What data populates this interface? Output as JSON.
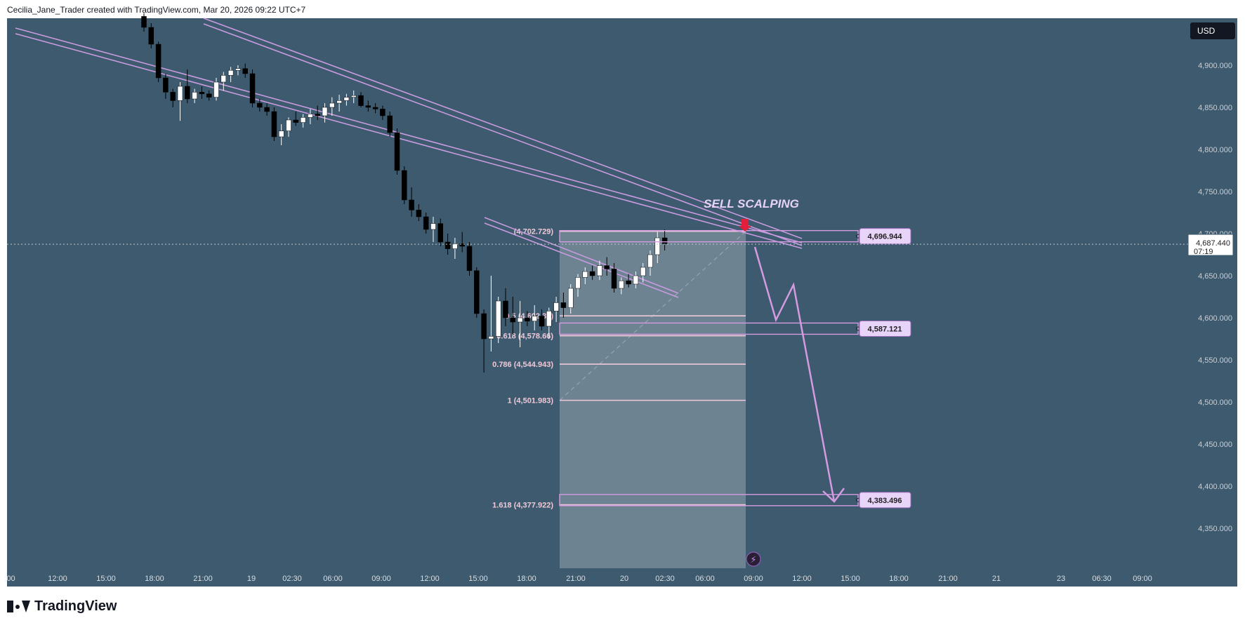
{
  "header": {
    "attribution": "Cecilia_Jane_Trader created with TradingView.com, Mar 20, 2026 09:22 UTC+7"
  },
  "footer": {
    "brand": "TradingView"
  },
  "colors": {
    "background": "#3e5a6e",
    "bull": "#ffffff",
    "bear": "#000000",
    "channel": "#c89be0",
    "fib": "#f0c8d8",
    "arrow": "#d49be0",
    "label_bg": "#e8d4f8"
  },
  "chart_data": {
    "type": "candlestick",
    "title": "",
    "currency": "USD",
    "ylim": [
      4300,
      4960
    ],
    "y_ticks": [
      "4,900.000",
      "4,850.000",
      "4,800.000",
      "4,750.000",
      "4,700.000",
      "4,650.000",
      "4,600.000",
      "4,550.000",
      "4,500.000",
      "4,450.000",
      "4,400.000",
      "4,350.000"
    ],
    "y_tick_values": [
      4900,
      4850,
      4800,
      4750,
      4700,
      4650,
      4600,
      4550,
      4500,
      4450,
      4400,
      4350
    ],
    "x_ticks": [
      ":00",
      "12:00",
      "15:00",
      "18:00",
      "21:00",
      "19",
      "02:30",
      "06:00",
      "09:00",
      "12:00",
      "15:00",
      "18:00",
      "21:00",
      "20",
      "02:30",
      "06:00",
      "09:00",
      "12:00",
      "15:00",
      "18:00",
      "21:00",
      "21",
      "23",
      "06:30",
      "09:00"
    ],
    "current_price": {
      "price": "4,687.440",
      "countdown": "07:19",
      "value": 4687.44
    },
    "annotation": "SELL SCALPING",
    "fib_levels": [
      {
        "label": "(4,702.729)",
        "value": 4702.729
      },
      {
        "label": "0.5 (4,602.33)",
        "value": 4602.33
      },
      {
        "label": "0.618 (4,578.66)",
        "value": 4578.66
      },
      {
        "label": "0.786 (4,544.943)",
        "value": 4544.943
      },
      {
        "label": "1 (4,501.983)",
        "value": 4501.983
      },
      {
        "label": "1.618 (4,377.922)",
        "value": 4377.922
      }
    ],
    "zones": [
      {
        "label": "4,696.944",
        "value": 4696.944
      },
      {
        "label": "4,587.121",
        "value": 4587.121
      },
      {
        "label": "4,383.496",
        "value": 4383.496
      }
    ],
    "candles": [
      [
        4958,
        4962,
        4940,
        4945
      ],
      [
        4945,
        4950,
        4920,
        4925
      ],
      [
        4925,
        4928,
        4880,
        4885
      ],
      [
        4885,
        4890,
        4860,
        4868
      ],
      [
        4868,
        4872,
        4850,
        4858
      ],
      [
        4858,
        4880,
        4834,
        4875
      ],
      [
        4875,
        4895,
        4855,
        4860
      ],
      [
        4860,
        4872,
        4855,
        4868
      ],
      [
        4868,
        4875,
        4860,
        4866
      ],
      [
        4866,
        4870,
        4858,
        4862
      ],
      [
        4862,
        4885,
        4858,
        4880
      ],
      [
        4880,
        4892,
        4870,
        4888
      ],
      [
        4888,
        4898,
        4880,
        4894
      ],
      [
        4894,
        4900,
        4888,
        4896
      ],
      [
        4896,
        4902,
        4885,
        4890
      ],
      [
        4890,
        4895,
        4850,
        4855
      ],
      [
        4855,
        4860,
        4845,
        4850
      ],
      [
        4850,
        4855,
        4840,
        4845
      ],
      [
        4845,
        4850,
        4810,
        4815
      ],
      [
        4815,
        4830,
        4805,
        4822
      ],
      [
        4822,
        4838,
        4815,
        4835
      ],
      [
        4835,
        4845,
        4828,
        4832
      ],
      [
        4832,
        4842,
        4826,
        4838
      ],
      [
        4838,
        4848,
        4830,
        4842
      ],
      [
        4842,
        4852,
        4835,
        4840
      ],
      [
        4840,
        4855,
        4832,
        4850
      ],
      [
        4850,
        4862,
        4840,
        4855
      ],
      [
        4855,
        4865,
        4845,
        4858
      ],
      [
        4858,
        4866,
        4852,
        4862
      ],
      [
        4862,
        4870,
        4855,
        4864
      ],
      [
        4864,
        4868,
        4850,
        4852
      ],
      [
        4852,
        4858,
        4845,
        4850
      ],
      [
        4850,
        4855,
        4843,
        4848
      ],
      [
        4848,
        4852,
        4835,
        4840
      ],
      [
        4840,
        4845,
        4815,
        4820
      ],
      [
        4820,
        4825,
        4770,
        4775
      ],
      [
        4775,
        4780,
        4735,
        4740
      ],
      [
        4740,
        4755,
        4720,
        4728
      ],
      [
        4728,
        4735,
        4715,
        4720
      ],
      [
        4720,
        4725,
        4700,
        4705
      ],
      [
        4705,
        4720,
        4690,
        4712
      ],
      [
        4712,
        4718,
        4685,
        4690
      ],
      [
        4690,
        4700,
        4675,
        4682
      ],
      [
        4682,
        4695,
        4670,
        4688
      ],
      [
        4688,
        4702,
        4678,
        4685
      ],
      [
        4685,
        4690,
        4650,
        4656
      ],
      [
        4656,
        4660,
        4600,
        4605
      ],
      [
        4605,
        4610,
        4535,
        4575
      ],
      [
        4575,
        4650,
        4560,
        4578
      ],
      [
        4578,
        4625,
        4570,
        4620
      ],
      [
        4620,
        4635,
        4590,
        4600
      ],
      [
        4600,
        4625,
        4580,
        4595
      ],
      [
        4595,
        4620,
        4565,
        4600
      ],
      [
        4600,
        4608,
        4590,
        4596
      ],
      [
        4596,
        4615,
        4585,
        4602
      ],
      [
        4602,
        4610,
        4585,
        4590
      ],
      [
        4590,
        4612,
        4575,
        4608
      ],
      [
        4608,
        4625,
        4595,
        4618
      ],
      [
        4618,
        4630,
        4600,
        4612
      ],
      [
        4612,
        4640,
        4605,
        4635
      ],
      [
        4635,
        4652,
        4625,
        4648
      ],
      [
        4648,
        4660,
        4640,
        4655
      ],
      [
        4655,
        4662,
        4645,
        4650
      ],
      [
        4650,
        4668,
        4645,
        4662
      ],
      [
        4662,
        4672,
        4650,
        4658
      ],
      [
        4658,
        4665,
        4630,
        4635
      ],
      [
        4635,
        4648,
        4628,
        4644
      ],
      [
        4644,
        4652,
        4636,
        4640
      ],
      [
        4640,
        4655,
        4635,
        4650
      ],
      [
        4650,
        4665,
        4642,
        4660
      ],
      [
        4660,
        4680,
        4650,
        4675
      ],
      [
        4675,
        4702,
        4665,
        4695
      ],
      [
        4695,
        4705,
        4680,
        4688
      ]
    ]
  }
}
